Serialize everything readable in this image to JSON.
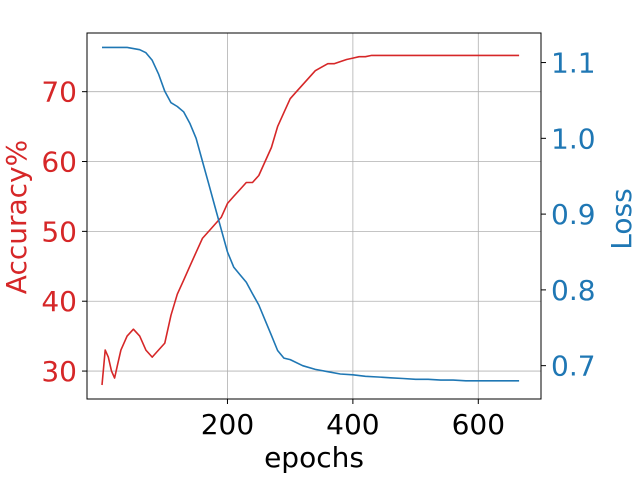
{
  "chart_data": {
    "type": "line",
    "title": "",
    "xlabel": "epochs",
    "ylabel_left": "Accuracy%",
    "ylabel_right": "Loss",
    "xlim": [
      -24,
      700
    ],
    "ylim_left": [
      26,
      78.4
    ],
    "ylim_right": [
      0.656,
      1.139
    ],
    "xticks": [
      200,
      400,
      600
    ],
    "yticks_left": [
      30,
      40,
      50,
      60,
      70
    ],
    "yticks_right": [
      0.7,
      0.8,
      0.9,
      1.0,
      1.1
    ],
    "xtick_labels": [
      "200",
      "400",
      "600"
    ],
    "yticks_left_labels": [
      "30",
      "40",
      "50",
      "60",
      "70"
    ],
    "yticks_right_labels": [
      "0.7",
      "0.8",
      "0.9",
      "1.0",
      "1.1"
    ],
    "grid": true,
    "legend": "none",
    "colors": {
      "accuracy": "#d62728",
      "loss": "#1f77b4"
    },
    "series": [
      {
        "axis": "left",
        "x": [
          0,
          5,
          10,
          15,
          20,
          25,
          30,
          35,
          40,
          50,
          60,
          70,
          80,
          90,
          100,
          110,
          120,
          130,
          140,
          150,
          160,
          170,
          180,
          190,
          200,
          210,
          220,
          230,
          240,
          250,
          260,
          270,
          280,
          290,
          300,
          310,
          320,
          330,
          340,
          350,
          360,
          370,
          380,
          390,
          400,
          410,
          420,
          430,
          440,
          460,
          480,
          500,
          520,
          540,
          560,
          580,
          600,
          620,
          640,
          660,
          665
        ],
        "values": [
          28,
          33,
          32,
          30,
          29,
          31,
          33,
          34,
          35,
          36,
          35,
          33,
          32,
          33,
          34,
          38,
          41,
          43,
          45,
          47,
          49,
          50,
          51,
          52,
          54,
          55,
          56,
          57,
          57,
          58,
          60,
          62,
          65,
          67,
          69,
          70,
          71,
          72,
          73,
          73.5,
          74,
          74,
          74.3,
          74.6,
          74.8,
          75,
          75,
          75.2,
          75.2,
          75.2,
          75.2,
          75.2,
          75.2,
          75.2,
          75.2,
          75.2,
          75.2,
          75.2,
          75.2,
          75.2,
          75.2
        ]
      },
      {
        "axis": "right",
        "x": [
          0,
          20,
          40,
          60,
          70,
          80,
          90,
          100,
          110,
          120,
          130,
          140,
          150,
          160,
          170,
          180,
          190,
          200,
          210,
          220,
          230,
          240,
          250,
          260,
          270,
          280,
          290,
          300,
          320,
          340,
          360,
          380,
          400,
          420,
          440,
          460,
          480,
          500,
          520,
          540,
          560,
          580,
          600,
          620,
          640,
          660,
          665
        ],
        "values": [
          1.12,
          1.12,
          1.12,
          1.117,
          1.113,
          1.103,
          1.085,
          1.062,
          1.047,
          1.042,
          1.035,
          1.02,
          1.0,
          0.97,
          0.94,
          0.91,
          0.88,
          0.85,
          0.83,
          0.82,
          0.81,
          0.795,
          0.78,
          0.76,
          0.74,
          0.72,
          0.71,
          0.708,
          0.7,
          0.695,
          0.692,
          0.689,
          0.688,
          0.686,
          0.685,
          0.684,
          0.683,
          0.682,
          0.682,
          0.681,
          0.681,
          0.68,
          0.68,
          0.68,
          0.68,
          0.68,
          0.68
        ]
      }
    ]
  }
}
